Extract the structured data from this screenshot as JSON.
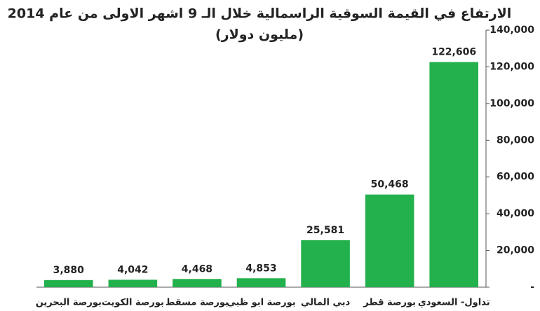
{
  "chart_data": {
    "type": "bar",
    "title": "الارتفاع في القيمة السوقية الراسمالية خلال الـ 9 اشهر الاولى من عام 2014",
    "subtitle": "(مليون دولار)",
    "categories": [
      "بورصة البحرين",
      "بورصة الكويت",
      "بورصة مسقط",
      "بورصة ابو ظبي",
      "دبي المالي",
      "بورصة قطر",
      "تداول- السعودي"
    ],
    "values": [
      3880,
      4042,
      4468,
      4853,
      25581,
      50468,
      122606
    ],
    "value_labels": [
      "3,880",
      "4,042",
      "4,468",
      "4,853",
      "25,581",
      "50,468",
      "122,606"
    ],
    "color": "#22b14c",
    "ylim": [
      0,
      140000
    ],
    "yticks": [
      {
        "value": 0,
        "label": "-"
      },
      {
        "value": 20000,
        "label": "20,000"
      },
      {
        "value": 40000,
        "label": "40,000"
      },
      {
        "value": 60000,
        "label": "60,000"
      },
      {
        "value": 80000,
        "label": "80,000"
      },
      {
        "value": 100000,
        "label": "100,000"
      },
      {
        "value": 120000,
        "label": "120,000"
      },
      {
        "value": 140000,
        "label": "140,000"
      }
    ],
    "grid": false
  }
}
